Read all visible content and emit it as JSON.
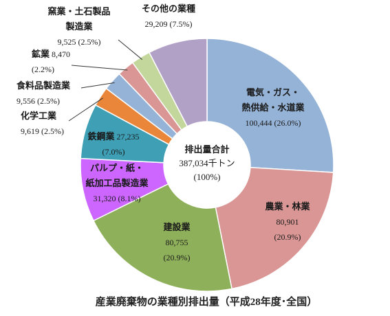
{
  "chart_data": {
    "type": "donut",
    "title": "産業廃棄物の業種別排出量（平成28年度･全国）",
    "categories": [
      "電気・ガス・\n熱供給・水道業",
      "農業・林業",
      "建設業",
      "パルプ・紙・\n紙加工品製造業",
      "鉄鋼業",
      "化学工業",
      "食料品製造業",
      "鉱業",
      "窯業・土石製品\n製造業",
      "その他の業種"
    ],
    "values": [
      100444,
      80901,
      80755,
      31320,
      27235,
      9619,
      9556,
      8470,
      9525,
      29209
    ],
    "value_labels": [
      "100,444",
      "80,901",
      "80,755",
      "31,320",
      "27,235",
      "9,619",
      "9,556",
      "8,470",
      "9,525",
      "29,209"
    ],
    "share_labels": [
      "(26.0%)",
      "(20.9%)",
      "(20.9%)",
      "(8.1%)",
      "(7.0%)",
      "(2.5%)",
      "(2.5%)",
      "(2.2%)",
      "(2.5%)",
      "(7.5%)"
    ],
    "colors": [
      "#95b3d7",
      "#d99694",
      "#8fb05a",
      "#cc66ff",
      "#3e9fb5",
      "#e9863a",
      "#95b3d7",
      "#d99694",
      "#c3d69b",
      "#b2a1c7"
    ],
    "center_label": "排出量合計",
    "total": 387034,
    "total_label": "387,034千トン",
    "total_share_label": "(100%)"
  }
}
